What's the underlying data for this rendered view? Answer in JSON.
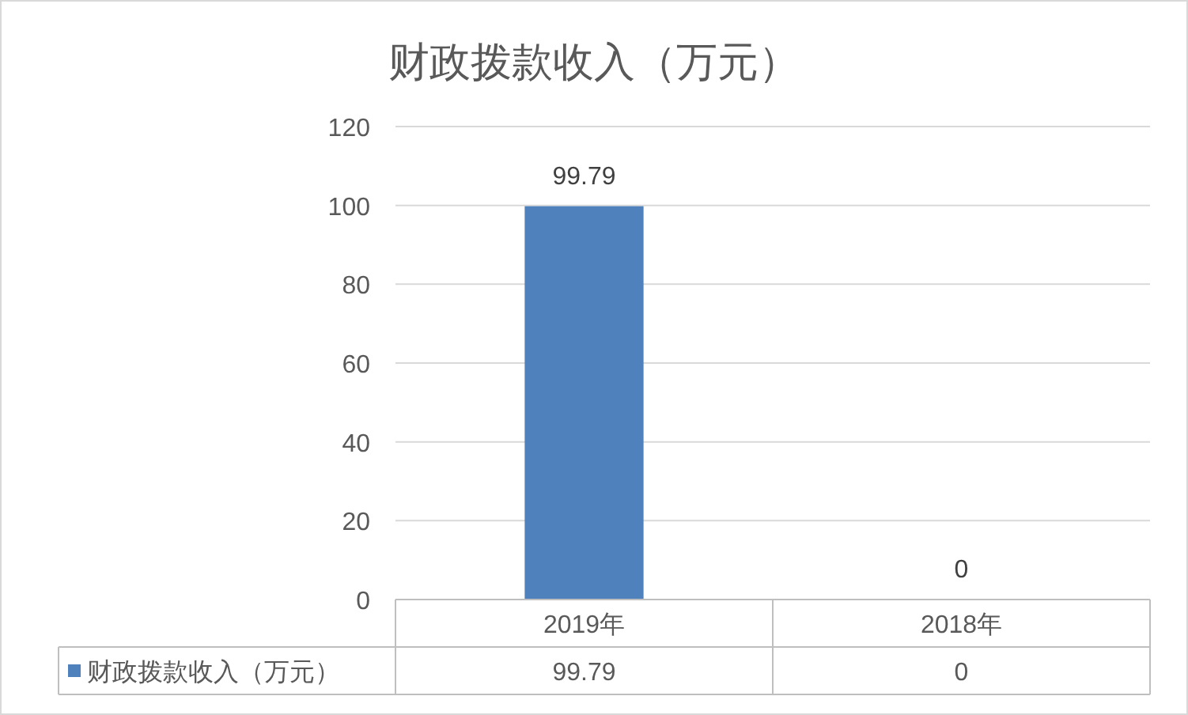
{
  "chart_data": {
    "type": "bar",
    "title": "财政拨款收入（万元）",
    "categories": [
      "2019年",
      "2018年"
    ],
    "series": [
      {
        "name": "财政拨款收入（万元）",
        "color": "#4f81bd",
        "values": [
          99.79,
          0
        ],
        "value_labels": [
          "99.79",
          "0"
        ]
      }
    ],
    "ylim": [
      0,
      120
    ],
    "yticks": [
      0,
      20,
      40,
      60,
      80,
      100,
      120
    ],
    "grid": "y",
    "legend": "bottom",
    "annotations": [
      "99.79",
      "0"
    ]
  }
}
